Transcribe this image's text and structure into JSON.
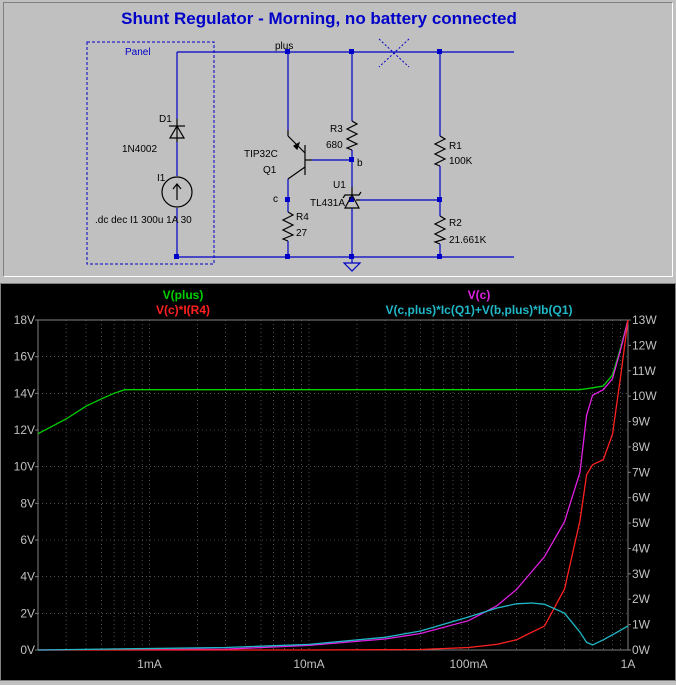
{
  "schematic": {
    "title": "Shunt Regulator - Morning, no battery connected",
    "panel_label": "Panel",
    "net_plus": "plus",
    "net_b": "b",
    "net_c": "c",
    "d1": {
      "ref": "D1",
      "value": "1N4002"
    },
    "i1": {
      "ref": "I1",
      "value": ".dc dec I1 300u 1A 30"
    },
    "q1": {
      "ref": "Q1",
      "value": "TIP32C"
    },
    "r3": {
      "ref": "R3",
      "value": "680"
    },
    "r4": {
      "ref": "R4",
      "value": "27"
    },
    "u1": {
      "ref": "U1",
      "value": "TL431A"
    },
    "r1": {
      "ref": "R1",
      "value": "100K"
    },
    "r2": {
      "ref": "R2",
      "value": "21.661K"
    },
    "colors": {
      "wire": "#0000c8",
      "title": "#0000c8",
      "component": "#000000"
    }
  },
  "chart_data": {
    "type": "line",
    "x_scale": "log",
    "xlim": [
      0.0002,
      1.0
    ],
    "x_ticks": [
      0.001,
      0.01,
      0.1,
      1
    ],
    "x_tick_labels": [
      "1mA",
      "10mA",
      "100mA",
      "1A"
    ],
    "left_axis": {
      "ylim": [
        0,
        18
      ],
      "ticks": [
        0,
        2,
        4,
        6,
        8,
        10,
        12,
        14,
        16,
        18
      ],
      "tick_labels": [
        "0V",
        "2V",
        "4V",
        "6V",
        "8V",
        "10V",
        "12V",
        "14V",
        "16V",
        "18V"
      ]
    },
    "right_axis": {
      "ylim": [
        0,
        13
      ],
      "ticks": [
        0,
        1,
        2,
        3,
        4,
        5,
        6,
        7,
        8,
        9,
        10,
        11,
        12,
        13
      ],
      "tick_labels": [
        "0W",
        "1W",
        "2W",
        "3W",
        "4W",
        "5W",
        "6W",
        "7W",
        "8W",
        "9W",
        "10W",
        "11W",
        "12W",
        "13W"
      ]
    },
    "grid": true,
    "background": "#000000",
    "series": [
      {
        "name": "V(plus)",
        "color": "#00d000",
        "axis": "left",
        "x": [
          0.0002,
          0.0003,
          0.0004,
          0.0005,
          0.0006,
          0.0007,
          0.001,
          0.01,
          0.1,
          0.3,
          0.5,
          0.6,
          0.7,
          0.8,
          0.9,
          1.0
        ],
        "y": [
          11.8,
          12.6,
          13.3,
          13.7,
          14.0,
          14.2,
          14.2,
          14.2,
          14.2,
          14.2,
          14.2,
          14.3,
          14.4,
          15.0,
          16.5,
          18.0
        ]
      },
      {
        "name": "V(c)",
        "color": "#e020e0",
        "axis": "left",
        "x": [
          0.0002,
          0.003,
          0.01,
          0.03,
          0.05,
          0.1,
          0.15,
          0.2,
          0.3,
          0.4,
          0.5,
          0.55,
          0.6,
          0.7,
          0.8,
          0.9,
          1.0
        ],
        "y": [
          0,
          0.05,
          0.25,
          0.6,
          0.9,
          1.6,
          2.4,
          3.3,
          5.1,
          7.0,
          9.7,
          12.8,
          13.9,
          14.2,
          14.8,
          16.4,
          18.0
        ]
      },
      {
        "name": "V(c)*I(R4)",
        "color": "#ff2020",
        "axis": "right",
        "x": [
          0.0002,
          0.01,
          0.05,
          0.1,
          0.15,
          0.2,
          0.3,
          0.4,
          0.5,
          0.55,
          0.6,
          0.7,
          0.8,
          0.9,
          1.0
        ],
        "y": [
          0,
          0,
          0.02,
          0.1,
          0.22,
          0.4,
          0.95,
          2.4,
          5.1,
          6.9,
          7.3,
          7.5,
          8.5,
          10.8,
          13.0
        ]
      },
      {
        "name": "V(c,plus)*Ic(Q1)+V(b,plus)*Ib(Q1)",
        "color": "#20b8c8",
        "axis": "right",
        "x": [
          0.0002,
          0.003,
          0.01,
          0.03,
          0.05,
          0.1,
          0.15,
          0.2,
          0.25,
          0.3,
          0.4,
          0.5,
          0.55,
          0.6,
          0.7,
          0.8,
          0.9,
          1.0
        ],
        "y": [
          0,
          0.1,
          0.22,
          0.5,
          0.75,
          1.3,
          1.65,
          1.82,
          1.85,
          1.8,
          1.45,
          0.7,
          0.3,
          0.2,
          0.4,
          0.6,
          0.78,
          0.95
        ]
      }
    ]
  }
}
